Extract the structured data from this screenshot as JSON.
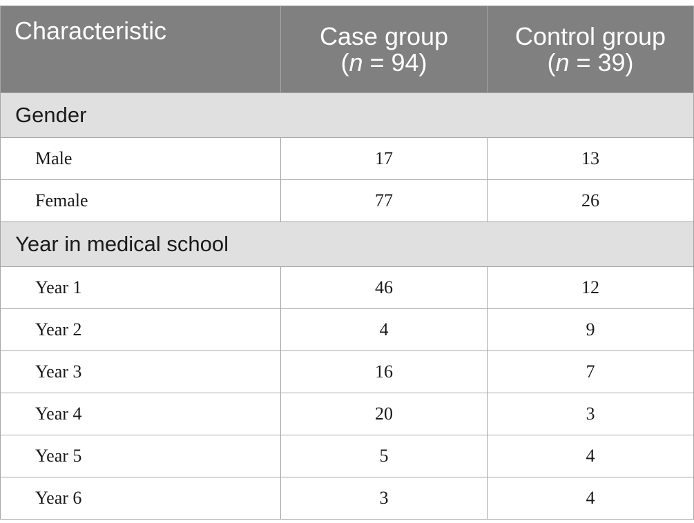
{
  "header": {
    "characteristic": "Characteristic",
    "case_title": "Case group",
    "case_n_prefix": "(",
    "case_n_symbol": "n",
    "case_n_value": " = 94)",
    "control_title": "Control group",
    "control_n_prefix": "(",
    "control_n_symbol": "n",
    "control_n_value": " = 39)"
  },
  "sections": [
    {
      "title": "Gender",
      "rows": [
        {
          "label": "Male",
          "case": "17",
          "control": "13"
        },
        {
          "label": "Female",
          "case": "77",
          "control": "26"
        }
      ]
    },
    {
      "title": "Year in medical school",
      "rows": [
        {
          "label": "Year 1",
          "case": "46",
          "control": "12"
        },
        {
          "label": "Year 2",
          "case": "4",
          "control": "9"
        },
        {
          "label": "Year 3",
          "case": "16",
          "control": "7"
        },
        {
          "label": "Year 4",
          "case": "20",
          "control": "3"
        },
        {
          "label": "Year 5",
          "case": "5",
          "control": "4"
        },
        {
          "label": "Year 6",
          "case": "3",
          "control": "4"
        }
      ]
    }
  ]
}
